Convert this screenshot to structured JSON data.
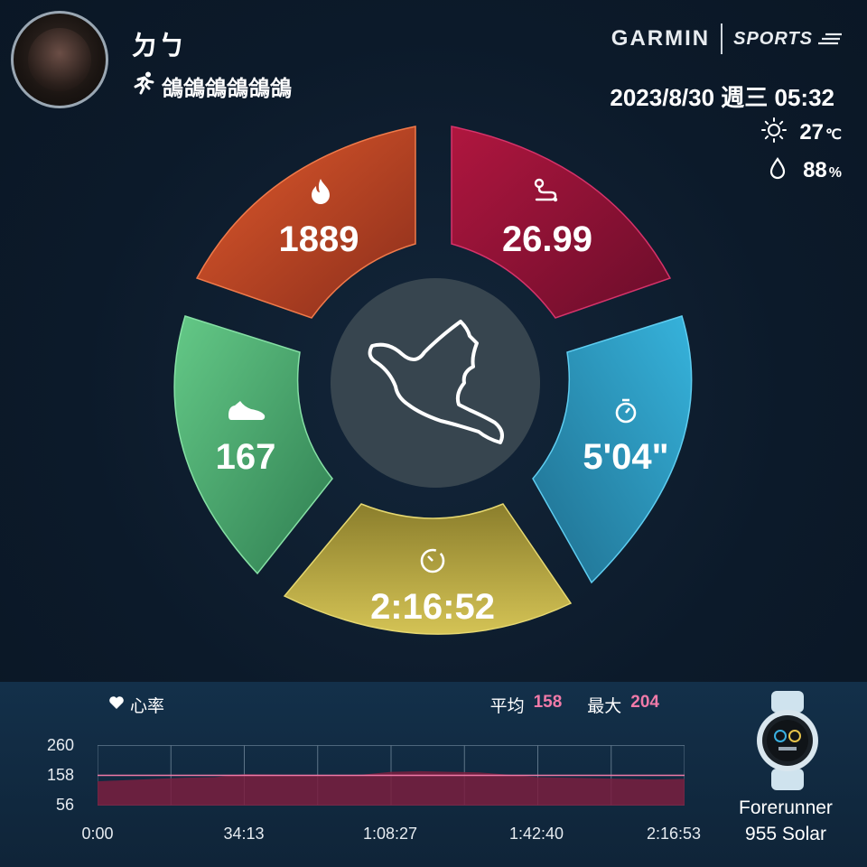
{
  "user": {
    "name": "ㄉㄅ",
    "activity_title": "鴿鴿鴿鴿鴿鴿"
  },
  "brand": {
    "garmin": "GARMIN",
    "sports": "SPORTS"
  },
  "datetime": "2023/8/30 週三 05:32",
  "weather": {
    "temperature": "27",
    "temperature_unit": "℃",
    "humidity": "88",
    "humidity_unit": "%"
  },
  "stats": {
    "calories": "1889",
    "distance": "26.99",
    "pace": "5'04\"",
    "duration": "2:16:52",
    "cadence": "167"
  },
  "segment_colors": {
    "calories": "#d9532a",
    "distance": "#b0163f",
    "pace": "#2fa6cf",
    "duration": "#c7b84a",
    "cadence": "#57c07a"
  },
  "heart_rate": {
    "label": "心率",
    "avg_label": "平均",
    "avg": "158",
    "max_label": "最大",
    "max": "204",
    "y_ticks": [
      "260",
      "158",
      "56"
    ],
    "x_ticks": [
      "0:00",
      "34:13",
      "1:08:27",
      "1:42:40",
      "2:16:53"
    ]
  },
  "chart_data": {
    "type": "area",
    "x": [
      "0:00",
      "6:51",
      "13:41",
      "20:32",
      "27:23",
      "34:13",
      "41:04",
      "47:55",
      "54:45",
      "1:01:36",
      "1:08:27",
      "1:15:17",
      "1:22:08",
      "1:28:59",
      "1:35:49",
      "1:42:40",
      "1:49:31",
      "1:56:21",
      "2:03:12",
      "2:10:03",
      "2:16:53"
    ],
    "series": [
      {
        "values": [
          138,
          142,
          146,
          150,
          152,
          162,
          160,
          158,
          156,
          160,
          170,
          172,
          170,
          168,
          160,
          152,
          150,
          148,
          146,
          144,
          146
        ]
      }
    ],
    "ylim": [
      56,
      260
    ],
    "y_ticks": [
      260,
      158,
      56
    ],
    "grid": true,
    "reference_line": 158
  },
  "device": {
    "line1": "Forerunner",
    "line2": "955 Solar"
  }
}
